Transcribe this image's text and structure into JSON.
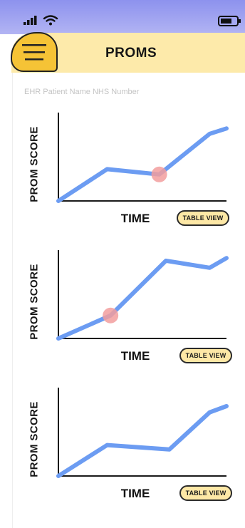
{
  "header": {
    "title": "PROMS"
  },
  "patient_info": "EHR Patient Name NHS Number",
  "icons": {
    "menu": "hamburger-menu-icon",
    "signal": "signal-bars-icon",
    "wifi": "wifi-icon",
    "battery": "battery-icon"
  },
  "colors": {
    "line": "#6c9cf2",
    "marker": "#f29d9d",
    "header": "#fdeaaa",
    "menu": "#f5c336"
  },
  "charts": [
    {
      "ylabel": "PROM SCORE",
      "xlabel": "TIME",
      "button_label": "TABLE VIEW"
    },
    {
      "ylabel": "PROM SCORE",
      "xlabel": "TIME",
      "button_label": "TABLE VIEW"
    },
    {
      "ylabel": "PROM SCORE",
      "xlabel": "TIME",
      "button_label": "TABLE VIEW"
    }
  ],
  "chart_data": [
    {
      "type": "line",
      "xlabel": "TIME",
      "ylabel": "PROM SCORE",
      "x": [
        0,
        0.29,
        0.6,
        0.9,
        1.0
      ],
      "y": [
        0,
        0.36,
        0.3,
        0.76,
        0.82
      ],
      "highlight_index": 2,
      "xlim": [
        0,
        1
      ],
      "ylim": [
        0,
        1
      ],
      "grid": false
    },
    {
      "type": "line",
      "xlabel": "TIME",
      "ylabel": "PROM SCORE",
      "x": [
        0,
        0.31,
        0.64,
        0.9,
        1.0
      ],
      "y": [
        0,
        0.26,
        0.88,
        0.8,
        0.91
      ],
      "highlight_index": 1,
      "xlim": [
        0,
        1
      ],
      "ylim": [
        0,
        1
      ],
      "grid": false
    },
    {
      "type": "line",
      "xlabel": "TIME",
      "ylabel": "PROM SCORE",
      "x": [
        0,
        0.29,
        0.66,
        0.9,
        1.0
      ],
      "y": [
        0,
        0.35,
        0.3,
        0.72,
        0.79
      ],
      "highlight_index": null,
      "xlim": [
        0,
        1
      ],
      "ylim": [
        0,
        1
      ],
      "grid": false
    }
  ]
}
